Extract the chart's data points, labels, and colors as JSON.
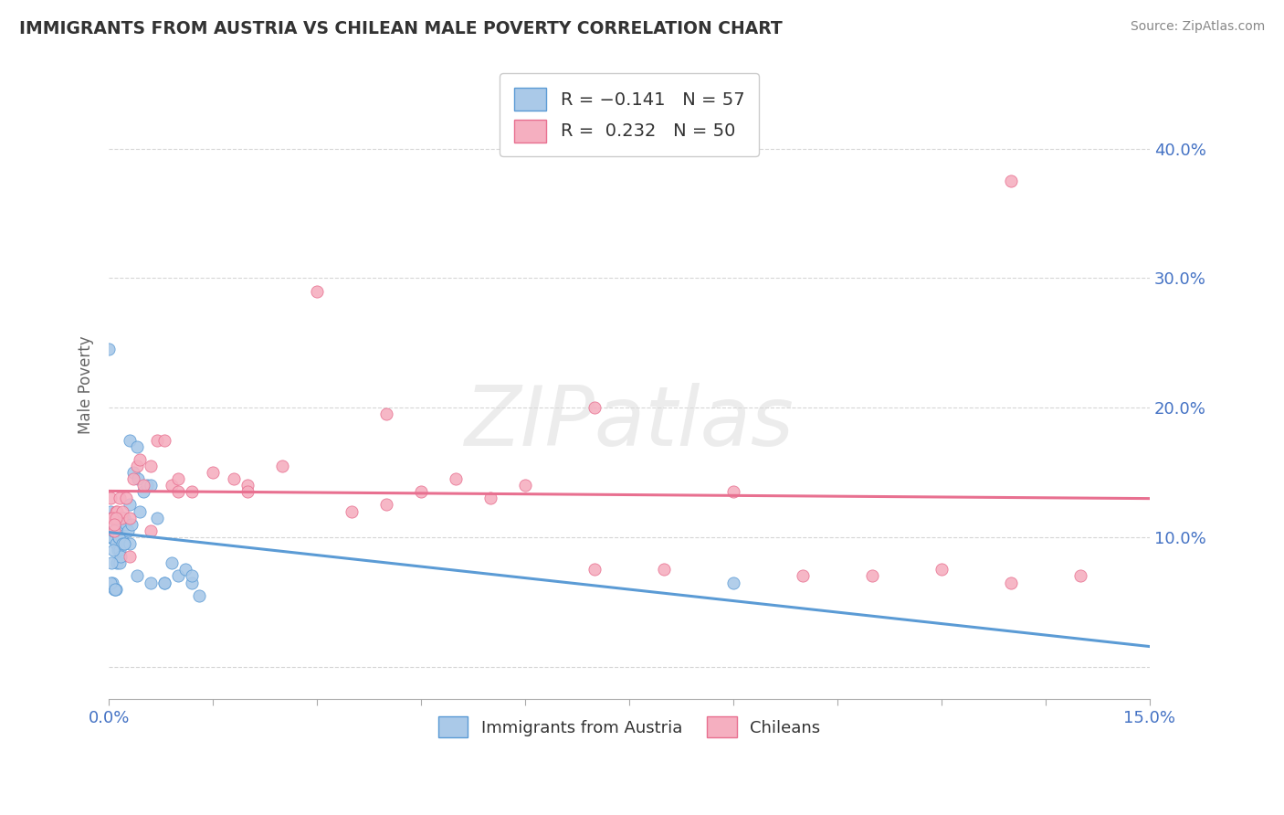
{
  "title": "IMMIGRANTS FROM AUSTRIA VS CHILEAN MALE POVERTY CORRELATION CHART",
  "source": "Source: ZipAtlas.com",
  "ylabel": "Male Poverty",
  "legend_label_1": "Immigrants from Austria",
  "legend_label_2": "Chileans",
  "R1": -0.141,
  "N1": 57,
  "R2": 0.232,
  "N2": 50,
  "color1": "#aac9e8",
  "color2": "#f5afc0",
  "trendline1_color": "#5b9bd5",
  "trendline2_color": "#e87090",
  "xlim": [
    0.0,
    0.15
  ],
  "ylim": [
    -0.025,
    0.46
  ],
  "blue_x": [
    0.0,
    0.0001,
    0.0002,
    0.0003,
    0.0004,
    0.0005,
    0.0006,
    0.0007,
    0.0008,
    0.0009,
    0.001,
    0.0011,
    0.0012,
    0.0013,
    0.0014,
    0.0015,
    0.0016,
    0.0017,
    0.0018,
    0.002,
    0.0021,
    0.0022,
    0.0025,
    0.0027,
    0.003,
    0.0032,
    0.0035,
    0.004,
    0.0042,
    0.0045,
    0.005,
    0.0055,
    0.006,
    0.007,
    0.008,
    0.009,
    0.01,
    0.011,
    0.012,
    0.013,
    0.0003,
    0.0005,
    0.0008,
    0.001,
    0.0014,
    0.002,
    0.003,
    0.004,
    0.006,
    0.008,
    0.012,
    0.09,
    0.0002,
    0.0006,
    0.0009,
    0.0022,
    0.003
  ],
  "blue_y": [
    0.245,
    0.1,
    0.12,
    0.1,
    0.115,
    0.1,
    0.105,
    0.115,
    0.115,
    0.115,
    0.095,
    0.08,
    0.115,
    0.09,
    0.1,
    0.08,
    0.09,
    0.085,
    0.1,
    0.115,
    0.11,
    0.115,
    0.11,
    0.105,
    0.175,
    0.11,
    0.15,
    0.17,
    0.145,
    0.12,
    0.135,
    0.14,
    0.14,
    0.115,
    0.065,
    0.08,
    0.07,
    0.075,
    0.065,
    0.055,
    0.08,
    0.065,
    0.06,
    0.06,
    0.1,
    0.095,
    0.095,
    0.07,
    0.065,
    0.065,
    0.07,
    0.065,
    0.065,
    0.09,
    0.06,
    0.095,
    0.125
  ],
  "pink_x": [
    0.0002,
    0.0004,
    0.0006,
    0.0008,
    0.001,
    0.0012,
    0.0015,
    0.0018,
    0.002,
    0.0025,
    0.003,
    0.0035,
    0.004,
    0.0045,
    0.005,
    0.006,
    0.007,
    0.008,
    0.009,
    0.01,
    0.012,
    0.015,
    0.018,
    0.02,
    0.025,
    0.03,
    0.035,
    0.04,
    0.045,
    0.05,
    0.055,
    0.06,
    0.07,
    0.08,
    0.09,
    0.1,
    0.11,
    0.12,
    0.13,
    0.14,
    0.0005,
    0.001,
    0.003,
    0.006,
    0.01,
    0.02,
    0.04,
    0.07,
    0.13,
    0.0008
  ],
  "pink_y": [
    0.13,
    0.115,
    0.115,
    0.105,
    0.12,
    0.12,
    0.13,
    0.115,
    0.12,
    0.13,
    0.115,
    0.145,
    0.155,
    0.16,
    0.14,
    0.155,
    0.175,
    0.175,
    0.14,
    0.145,
    0.135,
    0.15,
    0.145,
    0.14,
    0.155,
    0.29,
    0.12,
    0.125,
    0.135,
    0.145,
    0.13,
    0.14,
    0.075,
    0.075,
    0.135,
    0.07,
    0.07,
    0.075,
    0.065,
    0.07,
    0.115,
    0.115,
    0.085,
    0.105,
    0.135,
    0.135,
    0.195,
    0.2,
    0.375,
    0.11
  ]
}
